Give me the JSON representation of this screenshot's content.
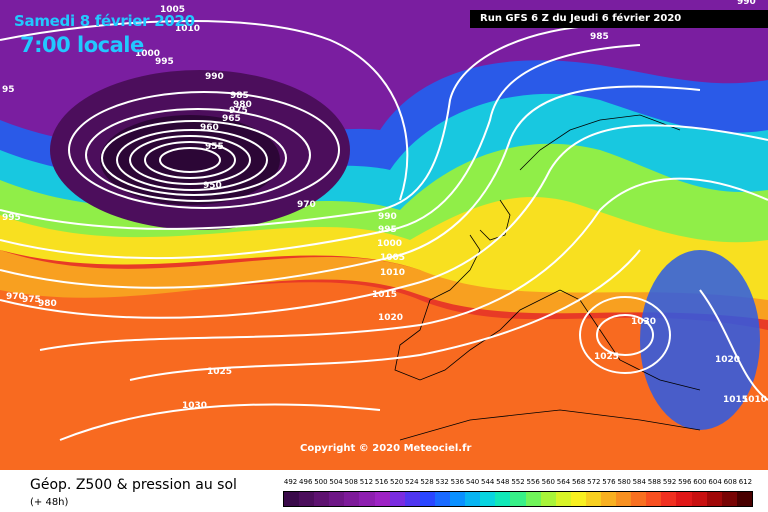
{
  "header": {
    "date": "Samedi 8 février 2020",
    "time": "7:00 locale",
    "run_info": "Run GFS 6 Z du Jeudi 6 février 2020"
  },
  "map": {
    "copyright": "Copyright © 2020 Meteociel.fr",
    "pressure_labels": [
      "1005",
      "1010",
      "1000",
      "995",
      "990",
      "985",
      "980",
      "975",
      "970",
      "965",
      "960",
      "955",
      "950",
      "95",
      "995",
      "990",
      "995",
      "1000",
      "1005",
      "1010",
      "1015",
      "1020",
      "1025",
      "1030",
      "1025",
      "1030",
      "1020",
      "1015",
      "1010",
      "990",
      "985",
      "980",
      "975",
      "970"
    ]
  },
  "legend": {
    "product": "Géop. Z500 & pression au sol",
    "lead": "(+ 48h)",
    "scale_values": [
      "492",
      "496",
      "500",
      "504",
      "508",
      "512",
      "516",
      "520",
      "524",
      "528",
      "532",
      "536",
      "540",
      "544",
      "548",
      "552",
      "556",
      "560",
      "564",
      "568",
      "572",
      "576",
      "580",
      "584",
      "588",
      "592",
      "596",
      "600",
      "604",
      "608",
      "612"
    ],
    "scale_colors": [
      "#3a0a4a",
      "#4c0e5c",
      "#5e1270",
      "#6e1686",
      "#7e1a9a",
      "#8e1eb0",
      "#9e22c4",
      "#7a2ce0",
      "#5036f0",
      "#2a46ff",
      "#1a6aff",
      "#0a90ff",
      "#08b4f2",
      "#08d4e0",
      "#10e8b8",
      "#38f088",
      "#70f45a",
      "#a8f43a",
      "#d8f428",
      "#f8f020",
      "#f8d020",
      "#f8b020",
      "#f89020",
      "#f87020",
      "#f85020",
      "#f03020",
      "#e01818",
      "#c81010",
      "#a00808",
      "#780404",
      "#480000"
    ]
  }
}
